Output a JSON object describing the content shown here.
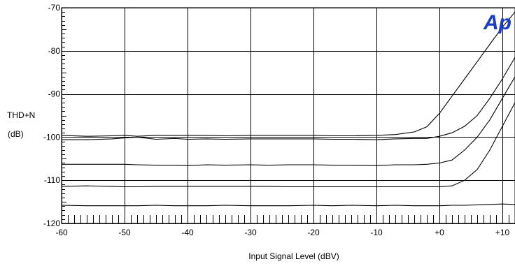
{
  "chart_data": {
    "type": "line",
    "title": "",
    "xlabel": "Input Signal Level (dBV)",
    "ylabel_lines": [
      "THD+N",
      "(dB)"
    ],
    "xlim": [
      -60,
      12
    ],
    "ylim": [
      -120,
      -70
    ],
    "x_ticks": [
      -60,
      -50,
      -40,
      -30,
      -20,
      -10,
      0,
      10
    ],
    "x_tick_labels": [
      "-60",
      "-50",
      "-40",
      "-30",
      "-20",
      "-10",
      "+0",
      "+10"
    ],
    "y_ticks": [
      -70,
      -80,
      -90,
      -100,
      -110,
      -120
    ],
    "y_tick_labels": [
      "-70",
      "-80",
      "-90",
      "-100",
      "-110",
      "-120"
    ],
    "grid": true,
    "logo_text": "Ap",
    "logo_color": "#1a3cc8",
    "line_color": "#000000",
    "series": [
      {
        "x": [
          -60,
          -56,
          -52,
          -50,
          -48,
          -45,
          -42,
          -40,
          -37,
          -34,
          -30,
          -27,
          -24,
          -20,
          -17,
          -14,
          -10,
          -7,
          -4,
          -2,
          0,
          2,
          4,
          6,
          8,
          10,
          12
        ],
        "values": [
          -99.6,
          -99.8,
          -99.7,
          -99.6,
          -99.8,
          -99.6,
          -99.6,
          -99.6,
          -99.6,
          -99.7,
          -99.6,
          -99.6,
          -99.6,
          -99.6,
          -99.7,
          -99.7,
          -99.6,
          -99.4,
          -98.8,
          -97.6,
          -94.5,
          -90.5,
          -86.5,
          -82.5,
          -78.5,
          -74.5,
          -71
        ]
      },
      {
        "x": [
          -60,
          -56,
          -52,
          -50,
          -48,
          -45,
          -42,
          -40,
          -37,
          -34,
          -30,
          -27,
          -24,
          -20,
          -17,
          -14,
          -10,
          -7,
          -4,
          -2,
          0,
          2,
          4,
          6,
          8,
          10,
          12
        ],
        "values": [
          -100.6,
          -100.6,
          -100.4,
          -100.2,
          -100.0,
          -100.5,
          -100.3,
          -100.5,
          -100.4,
          -100.5,
          -100.4,
          -100.4,
          -100.4,
          -100.4,
          -100.5,
          -100.5,
          -100.6,
          -100.4,
          -100.3,
          -100.3,
          -99.8,
          -99.0,
          -97.5,
          -95.0,
          -91.0,
          -86.5,
          -81.5
        ]
      },
      {
        "x": [
          -60,
          -56,
          -52,
          -50,
          -48,
          -45,
          -42,
          -40,
          -37,
          -34,
          -30,
          -27,
          -24,
          -20,
          -17,
          -14,
          -10,
          -7,
          -4,
          -2,
          0,
          2,
          4,
          6,
          8,
          10,
          12
        ],
        "values": [
          -106.3,
          -106.3,
          -106.3,
          -106.3,
          -106.4,
          -106.5,
          -106.5,
          -106.6,
          -106.4,
          -106.5,
          -106.4,
          -106.5,
          -106.4,
          -106.4,
          -106.5,
          -106.5,
          -106.6,
          -106.4,
          -106.4,
          -106.3,
          -106.0,
          -105.3,
          -103.0,
          -100.0,
          -96.0,
          -91.0,
          -86.0
        ]
      },
      {
        "x": [
          -60,
          -56,
          -52,
          -50,
          -48,
          -45,
          -42,
          -40,
          -37,
          -34,
          -30,
          -27,
          -24,
          -20,
          -17,
          -14,
          -10,
          -7,
          -4,
          -2,
          0,
          2,
          4,
          6,
          8,
          10,
          12
        ],
        "values": [
          -111.4,
          -111.3,
          -111.4,
          -111.5,
          -111.5,
          -111.4,
          -111.4,
          -111.4,
          -111.4,
          -111.4,
          -111.4,
          -111.4,
          -111.5,
          -111.5,
          -111.5,
          -111.5,
          -111.5,
          -111.5,
          -111.5,
          -111.5,
          -111.5,
          -111.3,
          -110.0,
          -107.5,
          -103.0,
          -97.5,
          -92.0
        ]
      },
      {
        "x": [
          -60,
          -56,
          -52,
          -50,
          -48,
          -45,
          -42,
          -40,
          -37,
          -34,
          -30,
          -27,
          -24,
          -20,
          -17,
          -14,
          -10,
          -7,
          -4,
          -2,
          0,
          2,
          4,
          6,
          8,
          10,
          12
        ],
        "values": [
          -115.8,
          -115.9,
          -115.9,
          -115.9,
          -115.9,
          -115.8,
          -115.9,
          -115.9,
          -115.9,
          -115.8,
          -115.9,
          -115.9,
          -115.9,
          -115.8,
          -115.9,
          -115.8,
          -115.9,
          -115.8,
          -115.9,
          -115.9,
          -115.9,
          -115.8,
          -115.8,
          -115.7,
          -115.6,
          -115.5,
          -115.6
        ]
      }
    ]
  }
}
